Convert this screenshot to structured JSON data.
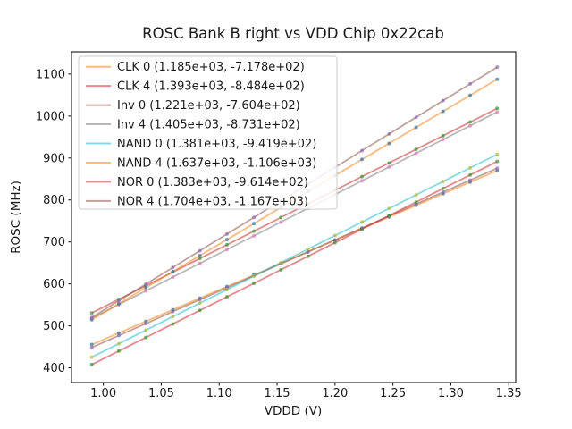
{
  "chart_data": {
    "type": "scatter",
    "title": "ROSC Bank B right vs VDD Chip 0x22cab",
    "xlabel": "VDDD (V)",
    "ylabel": "ROSC (MHz)",
    "xlim": [
      0.9725,
      1.356
    ],
    "ylim": [
      365,
      1153
    ],
    "xticks": [
      1.0,
      1.05,
      1.1,
      1.15,
      1.2,
      1.25,
      1.3,
      1.35
    ],
    "xtick_labels": [
      "1.00",
      "1.05",
      "1.10",
      "1.15",
      "1.20",
      "1.25",
      "1.30",
      "1.35"
    ],
    "yticks": [
      400,
      500,
      600,
      700,
      800,
      900,
      1000,
      1100
    ],
    "ytick_labels": [
      "400",
      "500",
      "600",
      "700",
      "800",
      "900",
      "1000",
      "1100"
    ],
    "grid": false,
    "legend_position": "upper left",
    "x": [
      0.99,
      1.0133,
      1.0367,
      1.06,
      1.0833,
      1.1067,
      1.13,
      1.1533,
      1.1767,
      1.2,
      1.2233,
      1.2467,
      1.27,
      1.2933,
      1.3167,
      1.34
    ],
    "series": [
      {
        "name": "CLK 0",
        "legend_label": "CLK 0 (1.185e+03, -7.178e+02)",
        "fit_slope": 1185.0,
        "fit_intercept": -717.8,
        "line_color": "#ff7f0e",
        "marker_color": "#1f77b4",
        "values": [
          455.4,
          483.0,
          510.7,
          538.3,
          566.0,
          593.6,
          621.3,
          648.9,
          676.6,
          704.2,
          731.9,
          759.5,
          787.2,
          814.8,
          842.5,
          870.1
        ]
      },
      {
        "name": "CLK 4",
        "legend_label": "CLK 4 (1.393e+03, -8.484e+02)",
        "fit_slope": 1393.0,
        "fit_intercept": -848.4,
        "line_color": "#d62728",
        "marker_color": "#2ca02c",
        "values": [
          530.7,
          563.2,
          595.7,
          628.2,
          660.7,
          693.2,
          725.7,
          758.2,
          790.7,
          823.2,
          855.7,
          888.2,
          920.7,
          953.2,
          985.7,
          1018.2
        ]
      },
      {
        "name": "Inv 0",
        "legend_label": "Inv 0 (1.221e+03, -7.604e+02)",
        "fit_slope": 1221.0,
        "fit_intercept": -760.4,
        "line_color": "#8c564b",
        "marker_color": "#9467bd",
        "values": [
          448.4,
          476.9,
          505.4,
          533.9,
          562.4,
          590.8,
          619.3,
          647.8,
          676.3,
          704.8,
          733.3,
          761.8,
          790.3,
          818.8,
          847.3,
          875.7
        ]
      },
      {
        "name": "Inv 4",
        "legend_label": "Inv 4 (1.405e+03, -8.731e+02)",
        "fit_slope": 1405.0,
        "fit_intercept": -873.1,
        "line_color": "#7f7f7f",
        "marker_color": "#e377c2",
        "values": [
          517.9,
          550.6,
          583.4,
          616.2,
          649.0,
          681.8,
          714.6,
          747.3,
          780.1,
          812.9,
          845.7,
          878.5,
          911.3,
          944.0,
          976.8,
          1009.6
        ]
      },
      {
        "name": "NAND 0",
        "legend_label": "NAND 0 (1.381e+03, -9.419e+02)",
        "fit_slope": 1381.0,
        "fit_intercept": -941.9,
        "line_color": "#17becf",
        "marker_color": "#bcbd22",
        "values": [
          425.3,
          457.5,
          489.7,
          522.0,
          554.2,
          586.4,
          618.6,
          650.9,
          683.1,
          715.3,
          747.5,
          779.7,
          812.0,
          844.2,
          876.4,
          908.6
        ]
      },
      {
        "name": "NAND 4",
        "legend_label": "NAND 4 (1.637e+03, -1.106e+03)",
        "fit_slope": 1637.0,
        "fit_intercept": -1106.0,
        "line_color": "#ff7f0e",
        "marker_color": "#1f77b4",
        "values": [
          514.6,
          552.8,
          591.0,
          629.2,
          667.4,
          705.6,
          743.8,
          782.0,
          820.2,
          858.4,
          896.6,
          934.8,
          973.0,
          1011.2,
          1049.4,
          1087.6
        ]
      },
      {
        "name": "NOR 0",
        "legend_label": "NOR 0 (1.383e+03, -9.614e+02)",
        "fit_slope": 1383.0,
        "fit_intercept": -961.4,
        "line_color": "#d62728",
        "marker_color": "#2ca02c",
        "values": [
          407.8,
          440.0,
          472.3,
          504.6,
          536.9,
          569.1,
          601.4,
          633.7,
          665.9,
          698.2,
          730.5,
          762.7,
          795.0,
          827.3,
          859.6,
          891.8
        ]
      },
      {
        "name": "NOR 4",
        "legend_label": "NOR 4 (1.704e+03, -1.167e+03)",
        "fit_slope": 1704.0,
        "fit_intercept": -1167.0,
        "line_color": "#8c564b",
        "marker_color": "#9467bd",
        "values": [
          520.0,
          559.7,
          599.5,
          639.2,
          679.0,
          718.8,
          758.5,
          798.3,
          838.0,
          877.8,
          917.6,
          957.3,
          997.1,
          1036.8,
          1076.6,
          1116.4
        ]
      }
    ]
  },
  "colors": {
    "background": "#ffffff",
    "text": "#1a1a1a",
    "axis": "#000000",
    "legend_border": "#cccccc",
    "legend_background": "#ffffff"
  }
}
